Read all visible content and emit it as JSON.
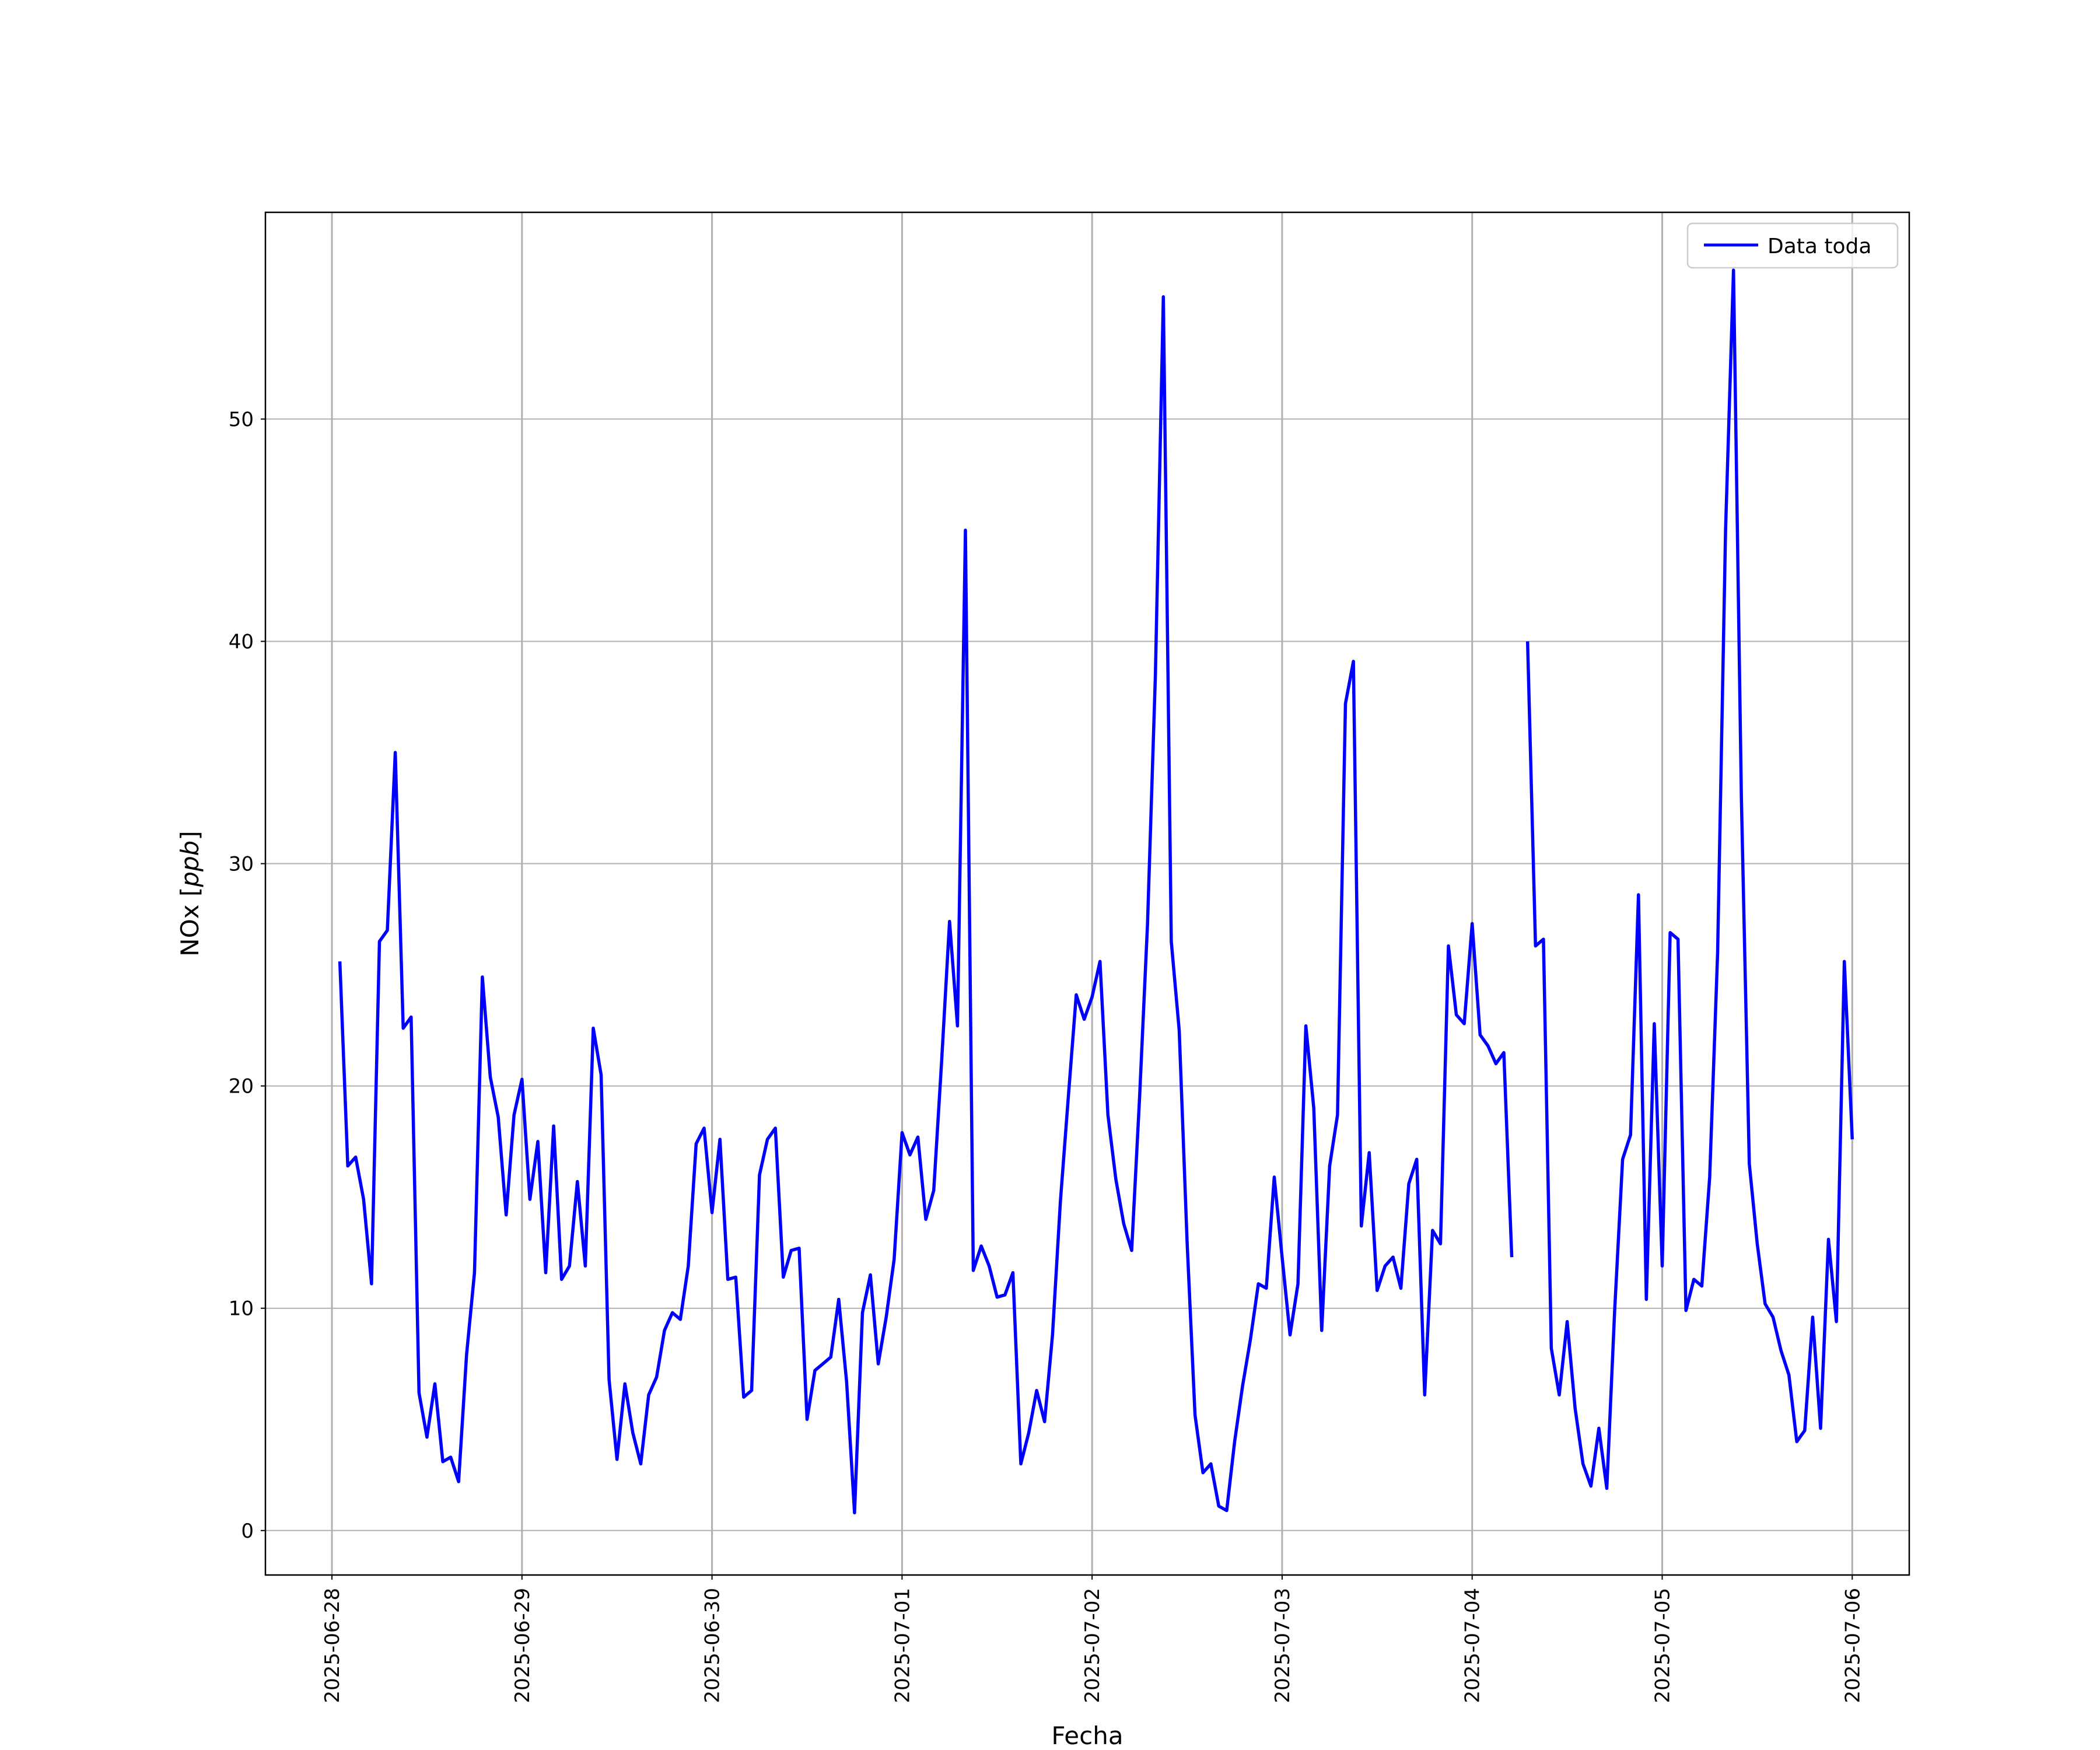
{
  "chart_data": {
    "type": "line",
    "title": "",
    "xlabel": "Fecha",
    "ylabel": "NOx [",
    "ylabel_unit": "ppb",
    "ylabel_close": "]",
    "start": "2025-06-28 01:00",
    "step_hours": 1,
    "xlim_days": [
      -0.35,
      8.3
    ],
    "ylim": [
      -2.0,
      59.3
    ],
    "yticks": [
      0,
      10,
      20,
      30,
      40,
      50
    ],
    "xtick_labels": [
      "2025-06-28",
      "2025-06-29",
      "2025-06-30",
      "2025-07-01",
      "2025-07-02",
      "2025-07-03",
      "2025-07-04",
      "2025-07-05",
      "2025-07-06"
    ],
    "grid": true,
    "legend_position": "top-right",
    "series": [
      {
        "name": "Data toda",
        "color": "#0000ff",
        "values": [
          25.6,
          16.4,
          16.8,
          14.9,
          11.1,
          26.5,
          27.0,
          35.0,
          22.6,
          23.1,
          6.2,
          4.2,
          6.6,
          3.1,
          3.3,
          2.2,
          7.9,
          11.6,
          24.9,
          20.4,
          18.6,
          14.2,
          18.7,
          20.3,
          14.9,
          17.5,
          11.6,
          18.2,
          11.3,
          11.9,
          15.7,
          11.9,
          22.6,
          20.5,
          6.8,
          3.2,
          6.6,
          4.4,
          3.0,
          6.1,
          6.9,
          9.0,
          9.8,
          9.5,
          11.9,
          17.4,
          18.1,
          14.3,
          17.6,
          11.3,
          11.4,
          6.0,
          6.3,
          16.0,
          17.6,
          18.1,
          11.4,
          12.6,
          12.7,
          5.0,
          7.2,
          7.5,
          7.8,
          10.4,
          6.7,
          0.8,
          9.8,
          11.5,
          7.5,
          9.6,
          12.2,
          17.9,
          16.9,
          17.7,
          14.0,
          15.3,
          21.1,
          27.4,
          22.7,
          45.0,
          11.7,
          12.8,
          11.9,
          10.5,
          10.6,
          11.6,
          3.0,
          4.4,
          6.3,
          4.9,
          8.8,
          14.8,
          19.5,
          24.1,
          23.0,
          24.0,
          25.6,
          18.7,
          15.8,
          13.8,
          12.6,
          19.5,
          27.3,
          38.5,
          55.5,
          26.5,
          22.5,
          13.0,
          5.2,
          2.6,
          3.0,
          1.1,
          0.9,
          4.0,
          6.5,
          8.6,
          11.1,
          10.9,
          15.9,
          12.3,
          8.8,
          11.1,
          22.7,
          19.0,
          9.0,
          16.4,
          18.7,
          37.2,
          39.1,
          13.7,
          17.0,
          10.8,
          11.9,
          12.3,
          10.9,
          15.6,
          16.7,
          6.1,
          13.5,
          12.9,
          26.3,
          23.2,
          22.8,
          27.3,
          22.3,
          21.8,
          21.0,
          21.5,
          12.3,
          null,
          40.0,
          26.3,
          26.6,
          8.2,
          6.1,
          9.4,
          5.5,
          3.0,
          2.0,
          4.6,
          1.9,
          9.9,
          16.7,
          17.8,
          28.6,
          10.4,
          22.8,
          11.9,
          26.9,
          26.6,
          9.9,
          11.3,
          11.0,
          15.9,
          26.0,
          45.0,
          56.7,
          33.0,
          16.5,
          12.9,
          10.2,
          9.6,
          8.1,
          7.0,
          4.0,
          4.5,
          9.6,
          4.6,
          13.1,
          9.4,
          25.6,
          17.6
        ]
      }
    ]
  }
}
